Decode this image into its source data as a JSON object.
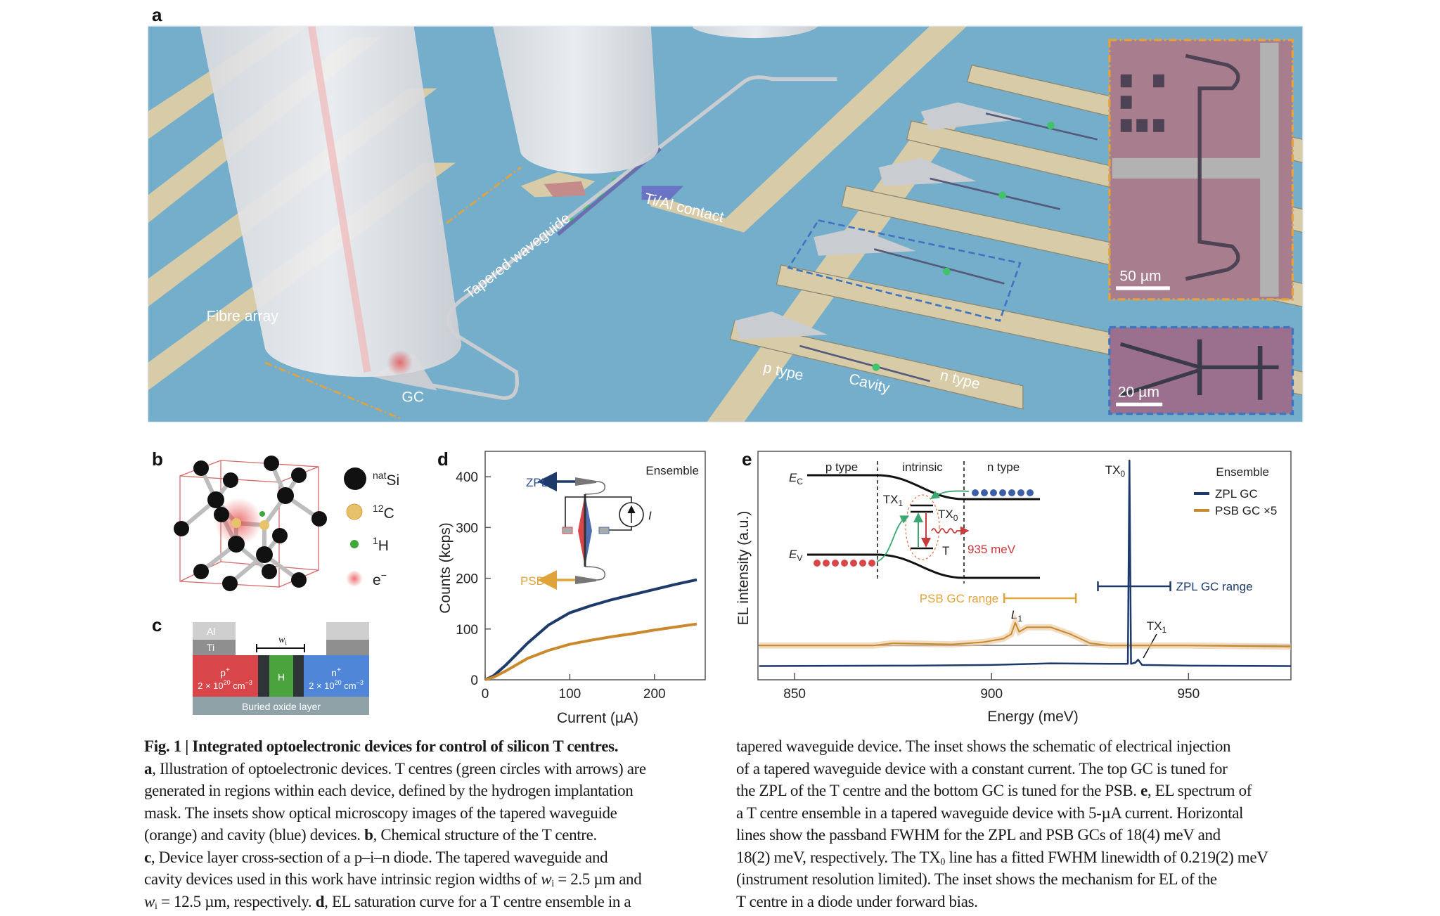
{
  "panel_labels": {
    "a": "a",
    "b": "b",
    "c": "c",
    "d": "d",
    "e": "e"
  },
  "panel_a": {
    "labels": {
      "fibre_array": "Fibre array",
      "gc": "GC",
      "tapered_waveguide": "Tapered waveguide",
      "ti_al_contact": "Ti/Al contact",
      "p_type": "p type",
      "cavity": "Cavity",
      "n_type": "n type"
    },
    "inset_orange_scale": "50 µm",
    "inset_blue_scale": "20 µm",
    "colors": {
      "substrate": "#74aecb",
      "contact": "#d8cba8",
      "inset_orange_border": "#e8a23a",
      "inset_blue_border": "#3f74c0",
      "t_centre": "#3fc46a"
    }
  },
  "panel_b": {
    "legend": [
      {
        "sup": "nat",
        "name": "Si"
      },
      {
        "sup": "12",
        "name": "C"
      },
      {
        "sup": "1",
        "name": "H"
      },
      {
        "name": "e",
        "sup_after": "−"
      }
    ]
  },
  "panel_c": {
    "al": "Al",
    "ti": "Ti",
    "p_region": {
      "name": "p",
      "sup": "+",
      "density": "2 × 10",
      "exp": "20",
      "unit": " cm",
      "unit_exp": "−3"
    },
    "h_region": "H",
    "n_region": {
      "name": "n",
      "sup": "+",
      "density": "2 × 10",
      "exp": "20",
      "unit": " cm",
      "unit_exp": "−3"
    },
    "box": "Buried oxide layer",
    "width_label": "w",
    "width_sub": "i"
  },
  "chart_data": [
    {
      "panel": "d",
      "type": "line",
      "annotation": "Ensemble",
      "xlabel": "Current (µA)",
      "ylabel": "Counts (kcps)",
      "xlim": [
        0,
        260
      ],
      "ylim": [
        0,
        450
      ],
      "xticks": [
        0,
        100,
        200
      ],
      "yticks": [
        0,
        100,
        200,
        300,
        400
      ],
      "grid": false,
      "series": [
        {
          "name": "ZPL",
          "color": "#1d3a6b",
          "x": [
            0,
            10,
            25,
            50,
            75,
            100,
            125,
            150,
            175,
            200,
            225,
            250
          ],
          "y": [
            0,
            8,
            30,
            72,
            108,
            132,
            146,
            158,
            168,
            178,
            188,
            197
          ]
        },
        {
          "name": "PSB",
          "color": "#c98a2e",
          "x": [
            0,
            10,
            25,
            50,
            75,
            100,
            125,
            150,
            175,
            200,
            225,
            250
          ],
          "y": [
            0,
            5,
            18,
            42,
            58,
            70,
            78,
            85,
            91,
            98,
            104,
            110
          ]
        }
      ],
      "inset": {
        "zpl_label": "ZPL",
        "psb_label": "PSB",
        "current_label": "I"
      }
    },
    {
      "panel": "e",
      "type": "line",
      "annotation": "Ensemble",
      "xlabel": "Energy (meV)",
      "ylabel": "EL intensity (a.u.)",
      "xlim": [
        840.7,
        976
      ],
      "ylim": [
        0,
        1
      ],
      "xticks": [
        850,
        900,
        950
      ],
      "grid": false,
      "legend_position": "top-right",
      "series": [
        {
          "name": "ZPL GC",
          "color": "#1d3a6b",
          "x": [
            841,
            880,
            900,
            915,
            930,
            934.6,
            935,
            935.4,
            936.5,
            937.2,
            938.2,
            950,
            976
          ],
          "y": [
            0.06,
            0.062,
            0.065,
            0.072,
            0.07,
            0.07,
            0.96,
            0.07,
            0.075,
            0.088,
            0.065,
            0.062,
            0.06
          ]
        },
        {
          "name": "PSB GC ×5",
          "color": "#c98a2e",
          "x": [
            841,
            860,
            870,
            875,
            890,
            898,
            903,
            905,
            906,
            907,
            909,
            915,
            920,
            925,
            930,
            950,
            976
          ],
          "y": [
            0.15,
            0.15,
            0.15,
            0.16,
            0.155,
            0.165,
            0.18,
            0.2,
            0.25,
            0.21,
            0.23,
            0.23,
            0.2,
            0.16,
            0.15,
            0.15,
            0.145
          ]
        }
      ],
      "ranges": [
        {
          "label": "ZPL GC range",
          "from": 927,
          "to": 945.4,
          "color": "#1d3a6b"
        },
        {
          "label": "PSB GC range",
          "from": 903.2,
          "to": 921.4,
          "color": "#e0a33a"
        }
      ],
      "peak_labels": {
        "tx0": "TX",
        "tx0_sub": "0",
        "l1": "L",
        "l1_sub": "1",
        "tx1": "TX",
        "tx1_sub": "1"
      },
      "inset": {
        "p_type": "p type",
        "intrinsic": "intrinsic",
        "n_type": "n type",
        "ec": "E",
        "ec_sub": "C",
        "ev": "E",
        "ev_sub": "V",
        "tx1": "TX",
        "tx1_sub": "1",
        "tx0": "TX",
        "tx0_sub": "0",
        "t": "T",
        "energy": "935 meV"
      }
    }
  ],
  "caption": {
    "left": [
      [
        {
          "t": "Fig. 1 | Integrated optoelectronic devices for control of silicon T centres.",
          "s": "b"
        }
      ],
      [
        {
          "t": "a",
          "s": "b"
        },
        {
          "t": ", Illustration of optoelectronic devices. T centres (green circles with arrows) are"
        }
      ],
      [
        {
          "t": "generated in regions within each device, defined by the hydrogen implantation"
        }
      ],
      [
        {
          "t": "mask. The insets show optical microscopy images of the tapered waveguide"
        }
      ],
      [
        {
          "t": "(orange) and cavity (blue) devices. "
        },
        {
          "t": "b",
          "s": "b"
        },
        {
          "t": ", Chemical structure of the T centre."
        }
      ],
      [
        {
          "t": "c",
          "s": "b"
        },
        {
          "t": ", Device layer cross-section of a p–i–n diode. The tapered waveguide and"
        }
      ],
      [
        {
          "t": "cavity devices used in this work have intrinsic region widths of "
        },
        {
          "t": "w",
          "s": "i"
        },
        {
          "t": "i",
          "s": "sub"
        },
        {
          "t": " = 2.5 µm and"
        }
      ],
      [
        {
          "t": "w",
          "s": "i"
        },
        {
          "t": "i",
          "s": "sub"
        },
        {
          "t": " = 12.5 µm, respectively. "
        },
        {
          "t": "d",
          "s": "b"
        },
        {
          "t": ", EL saturation curve for a T centre ensemble in a"
        }
      ]
    ],
    "right": [
      [
        {
          "t": "tapered waveguide device. The inset shows the schematic of electrical injection"
        }
      ],
      [
        {
          "t": "of a tapered waveguide device with a constant current. The top GC is tuned for"
        }
      ],
      [
        {
          "t": "the ZPL of the T centre and the bottom GC is tuned for the PSB. "
        },
        {
          "t": "e",
          "s": "b"
        },
        {
          "t": ", EL spectrum of"
        }
      ],
      [
        {
          "t": "a T centre ensemble in a tapered waveguide device with 5-µA current. Horizontal"
        }
      ],
      [
        {
          "t": "lines show the passband FWHM for the ZPL and PSB GCs of 18(4) meV and"
        }
      ],
      [
        {
          "t": "18(2) meV, respectively. The TX"
        },
        {
          "t": "0",
          "s": "sub"
        },
        {
          "t": " line has a fitted FWHM linewidth of 0.219(2) meV"
        }
      ],
      [
        {
          "t": "(instrument resolution limited). The inset shows the mechanism for EL of the"
        }
      ],
      [
        {
          "t": "T centre in a diode under forward bias."
        }
      ]
    ]
  }
}
